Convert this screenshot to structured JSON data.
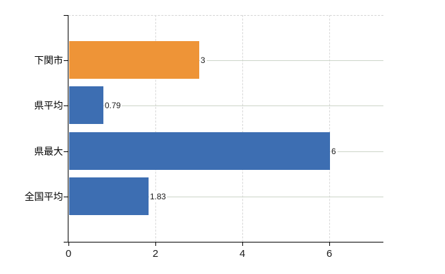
{
  "chart_data": {
    "type": "bar",
    "orientation": "horizontal",
    "title": "",
    "xlabel": "",
    "ylabel": "",
    "categories": [
      "下関市",
      "県平均",
      "県最大",
      "全国平均"
    ],
    "values": [
      3,
      0.79,
      6,
      1.83
    ],
    "value_labels": [
      "3",
      "0.79",
      "6",
      "1.83"
    ],
    "bar_colors": [
      "#ee9437",
      "#3d6eb2",
      "#3d6eb2",
      "#3d6eb2"
    ],
    "x_tick_labels": [
      "0",
      "2",
      "4",
      "6"
    ],
    "x_tick_values": [
      0,
      2,
      4,
      6
    ],
    "xlim": [
      0,
      7.25
    ],
    "grid": true,
    "legend": false
  },
  "colors": {
    "highlight_bar": "#ee9437",
    "default_bar": "#3d6eb2",
    "h_gridline": "#ccd4c8",
    "v_gridline": "#d8d8d8",
    "axis": "#000000",
    "text": "#1a1a1a",
    "background": "#ffffff"
  }
}
